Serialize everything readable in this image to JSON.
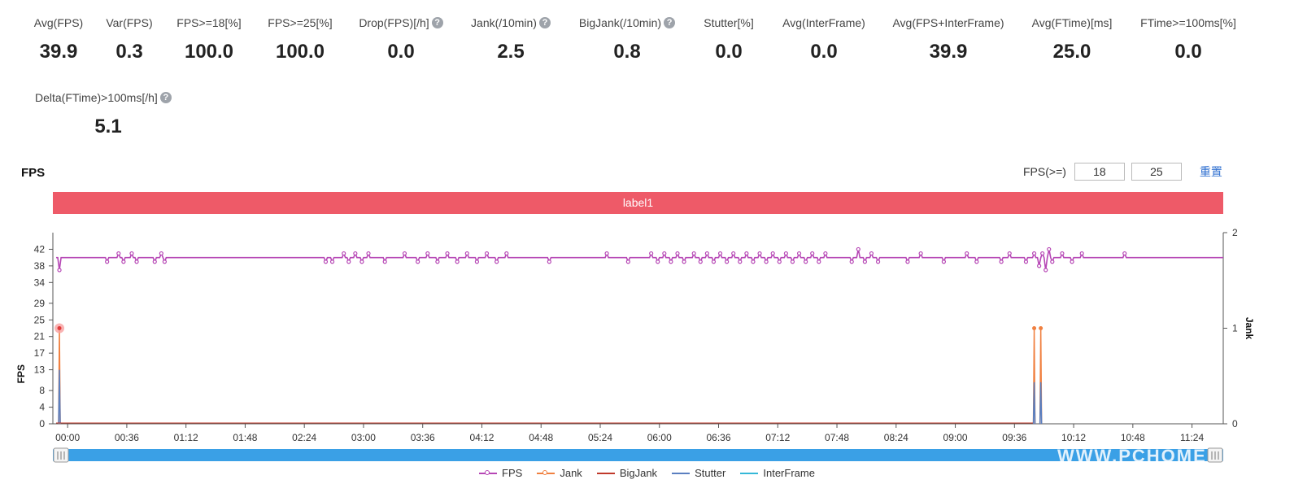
{
  "metrics_row1": [
    {
      "label": "Avg(FPS)",
      "value": "39.9",
      "help": false
    },
    {
      "label": "Var(FPS)",
      "value": "0.3",
      "help": false
    },
    {
      "label": "FPS>=18[%]",
      "value": "100.0",
      "help": false
    },
    {
      "label": "FPS>=25[%]",
      "value": "100.0",
      "help": false
    },
    {
      "label": "Drop(FPS)[/h]",
      "value": "0.0",
      "help": true
    },
    {
      "label": "Jank(/10min)",
      "value": "2.5",
      "help": true
    },
    {
      "label": "BigJank(/10min)",
      "value": "0.8",
      "help": true
    },
    {
      "label": "Stutter[%]",
      "value": "0.0",
      "help": false
    },
    {
      "label": "Avg(InterFrame)",
      "value": "0.0",
      "help": false
    },
    {
      "label": "Avg(FPS+InterFrame)",
      "value": "39.9",
      "help": false
    },
    {
      "label": "Avg(FTime)[ms]",
      "value": "25.0",
      "help": false
    },
    {
      "label": "FTime>=100ms[%]",
      "value": "0.0",
      "help": false
    }
  ],
  "metrics_row2": [
    {
      "label": "Delta(FTime)>100ms[/h]",
      "value": "5.1",
      "help": true
    }
  ],
  "help_glyph": "?",
  "chart_title": "FPS",
  "fps_threshold": {
    "label": "FPS(>=)",
    "low": "18",
    "high": "25",
    "reset_label": "重置"
  },
  "label_bar": {
    "text": "label1",
    "color": "#ee5a68"
  },
  "watermark": "WWW.PCHOME",
  "chart_data": {
    "type": "line",
    "title": "FPS",
    "ylabel": "FPS",
    "y2label": "Jank",
    "yticks": [
      0,
      4,
      8,
      13,
      17,
      21,
      25,
      29,
      34,
      38,
      42
    ],
    "ylim": [
      0,
      46
    ],
    "y2ticks": [
      0,
      1,
      2
    ],
    "y2lim": [
      0,
      2
    ],
    "xticks": [
      "00:00",
      "00:36",
      "01:12",
      "01:48",
      "02:24",
      "03:00",
      "03:36",
      "04:12",
      "04:48",
      "05:24",
      "06:00",
      "06:36",
      "07:12",
      "07:48",
      "08:24",
      "09:00",
      "09:36",
      "10:12",
      "10:48",
      "11:24"
    ],
    "x_max_seconds": 710,
    "fps_baseline": 40,
    "fps_dips": [
      {
        "t": 2,
        "v": 37
      },
      {
        "t": 31,
        "v": 39
      },
      {
        "t": 38,
        "v": 41
      },
      {
        "t": 41,
        "v": 39
      },
      {
        "t": 46,
        "v": 41
      },
      {
        "t": 49,
        "v": 39
      },
      {
        "t": 60,
        "v": 39
      },
      {
        "t": 64,
        "v": 41
      },
      {
        "t": 66,
        "v": 39
      },
      {
        "t": 164,
        "v": 39
      },
      {
        "t": 168,
        "v": 39
      },
      {
        "t": 175,
        "v": 41
      },
      {
        "t": 178,
        "v": 39
      },
      {
        "t": 182,
        "v": 41
      },
      {
        "t": 186,
        "v": 39
      },
      {
        "t": 190,
        "v": 41
      },
      {
        "t": 200,
        "v": 39
      },
      {
        "t": 212,
        "v": 41
      },
      {
        "t": 220,
        "v": 39
      },
      {
        "t": 226,
        "v": 41
      },
      {
        "t": 232,
        "v": 39
      },
      {
        "t": 238,
        "v": 41
      },
      {
        "t": 244,
        "v": 39
      },
      {
        "t": 250,
        "v": 41
      },
      {
        "t": 256,
        "v": 39
      },
      {
        "t": 262,
        "v": 41
      },
      {
        "t": 268,
        "v": 39
      },
      {
        "t": 274,
        "v": 41
      },
      {
        "t": 300,
        "v": 39
      },
      {
        "t": 335,
        "v": 41
      },
      {
        "t": 348,
        "v": 39
      },
      {
        "t": 362,
        "v": 41
      },
      {
        "t": 366,
        "v": 39
      },
      {
        "t": 370,
        "v": 41
      },
      {
        "t": 374,
        "v": 39
      },
      {
        "t": 378,
        "v": 41
      },
      {
        "t": 382,
        "v": 39
      },
      {
        "t": 388,
        "v": 41
      },
      {
        "t": 392,
        "v": 39
      },
      {
        "t": 396,
        "v": 41
      },
      {
        "t": 400,
        "v": 39
      },
      {
        "t": 404,
        "v": 41
      },
      {
        "t": 408,
        "v": 39
      },
      {
        "t": 412,
        "v": 41
      },
      {
        "t": 416,
        "v": 39
      },
      {
        "t": 420,
        "v": 41
      },
      {
        "t": 424,
        "v": 39
      },
      {
        "t": 428,
        "v": 41
      },
      {
        "t": 432,
        "v": 39
      },
      {
        "t": 436,
        "v": 41
      },
      {
        "t": 440,
        "v": 39
      },
      {
        "t": 444,
        "v": 41
      },
      {
        "t": 448,
        "v": 39
      },
      {
        "t": 452,
        "v": 41
      },
      {
        "t": 456,
        "v": 39
      },
      {
        "t": 460,
        "v": 41
      },
      {
        "t": 464,
        "v": 39
      },
      {
        "t": 468,
        "v": 41
      },
      {
        "t": 484,
        "v": 39
      },
      {
        "t": 488,
        "v": 42
      },
      {
        "t": 492,
        "v": 39
      },
      {
        "t": 496,
        "v": 41
      },
      {
        "t": 500,
        "v": 39
      },
      {
        "t": 518,
        "v": 39
      },
      {
        "t": 526,
        "v": 41
      },
      {
        "t": 540,
        "v": 39
      },
      {
        "t": 554,
        "v": 41
      },
      {
        "t": 560,
        "v": 39
      },
      {
        "t": 575,
        "v": 39
      },
      {
        "t": 580,
        "v": 41
      },
      {
        "t": 590,
        "v": 39
      },
      {
        "t": 595,
        "v": 41
      },
      {
        "t": 598,
        "v": 38
      },
      {
        "t": 600,
        "v": 41
      },
      {
        "t": 602,
        "v": 37
      },
      {
        "t": 604,
        "v": 42
      },
      {
        "t": 606,
        "v": 39
      },
      {
        "t": 612,
        "v": 41
      },
      {
        "t": 618,
        "v": 39
      },
      {
        "t": 624,
        "v": 41
      },
      {
        "t": 650,
        "v": 41
      }
    ],
    "series": [
      {
        "name": "FPS",
        "color": "#b646b5",
        "axis": "left",
        "marker": "circle"
      },
      {
        "name": "Jank",
        "color": "#f08040",
        "axis": "right",
        "marker": "circle",
        "points": [
          {
            "t": 2,
            "v": 1
          },
          {
            "t": 595,
            "v": 1
          },
          {
            "t": 599,
            "v": 1
          }
        ]
      },
      {
        "name": "BigJank",
        "color": "#c0392b",
        "axis": "right",
        "marker": "none",
        "points": []
      },
      {
        "name": "Stutter",
        "color": "#5a7fc0",
        "axis": "left",
        "marker": "none",
        "points": [
          {
            "t": 2,
            "v": 13
          },
          {
            "t": 595,
            "v": 10
          },
          {
            "t": 599,
            "v": 10
          }
        ]
      },
      {
        "name": "InterFrame",
        "color": "#35b8d8",
        "axis": "left",
        "marker": "none",
        "points": []
      }
    ],
    "highlight": {
      "t": 2,
      "series": "Jank"
    },
    "legend_position": "bottom-center"
  }
}
